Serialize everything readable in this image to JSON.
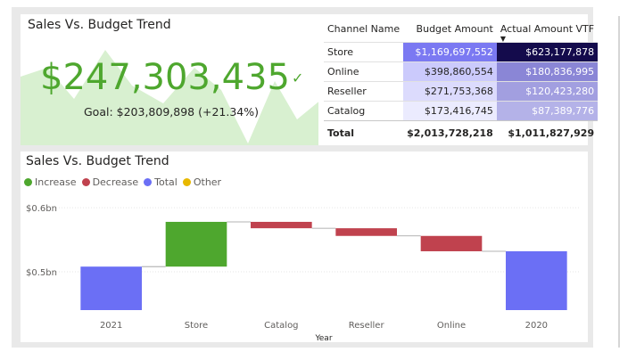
{
  "kpi": {
    "title": "Sales Vs. Budget Trend",
    "value": "$247,303,435",
    "check_icon": "check-icon",
    "goal": "Goal: $203,809,898 (+21.34%)",
    "trend_color": "#4ea72e",
    "area_color": "#d8f0d0"
  },
  "table": {
    "columns": [
      "Channel Name",
      "Budget Amount",
      "Actual Amount VTF"
    ],
    "sort_icon": "sort-descending-icon",
    "rows": [
      {
        "channel": "Store",
        "budget": "$1,169,697,552",
        "actual": "$623,177,878"
      },
      {
        "channel": "Online",
        "budget": "$398,860,554",
        "actual": "$180,836,995"
      },
      {
        "channel": "Reseller",
        "budget": "$271,753,368",
        "actual": "$120,423,280"
      },
      {
        "channel": "Catalog",
        "budget": "$173,416,745",
        "actual": "$87,389,776"
      }
    ],
    "total": {
      "label": "Total",
      "budget": "$2,013,728,218",
      "actual": "$1,011,827,929"
    },
    "budget_colors": [
      "#7b79f2",
      "#cbcafc",
      "#dcdbfd",
      "#ebebfe"
    ],
    "actual_colors": [
      "#140b4c",
      "#8a86d6",
      "#a29fe0",
      "#b4b2e8"
    ]
  },
  "chart_data": {
    "type": "waterfall",
    "title": "Sales Vs. Budget Trend",
    "xlabel": "Year",
    "ylabel": "",
    "legend": [
      {
        "name": "Increase",
        "color": "#4ea72e"
      },
      {
        "name": "Decrease",
        "color": "#c0424e"
      },
      {
        "name": "Total",
        "color": "#6b6ff5"
      },
      {
        "name": "Other",
        "color": "#e8b800"
      }
    ],
    "legend_position": "top-left",
    "y_ticks": [
      {
        "value": 0.6,
        "label": "$0.6bn"
      },
      {
        "value": 0.5,
        "label": "$0.5bn"
      }
    ],
    "ylim": [
      0.44,
      0.61
    ],
    "categories": [
      "2021",
      "Store",
      "Catalog",
      "Reseller",
      "Online",
      "2020"
    ],
    "bars": [
      {
        "category": "2021",
        "kind": "Total",
        "start": 0.44,
        "end": 0.508
      },
      {
        "category": "Store",
        "kind": "Increase",
        "start": 0.508,
        "end": 0.578
      },
      {
        "category": "Catalog",
        "kind": "Decrease",
        "start": 0.578,
        "end": 0.568
      },
      {
        "category": "Reseller",
        "kind": "Decrease",
        "start": 0.568,
        "end": 0.556
      },
      {
        "category": "Online",
        "kind": "Decrease",
        "start": 0.556,
        "end": 0.532
      },
      {
        "category": "2020",
        "kind": "Total",
        "start": 0.44,
        "end": 0.532
      }
    ]
  }
}
